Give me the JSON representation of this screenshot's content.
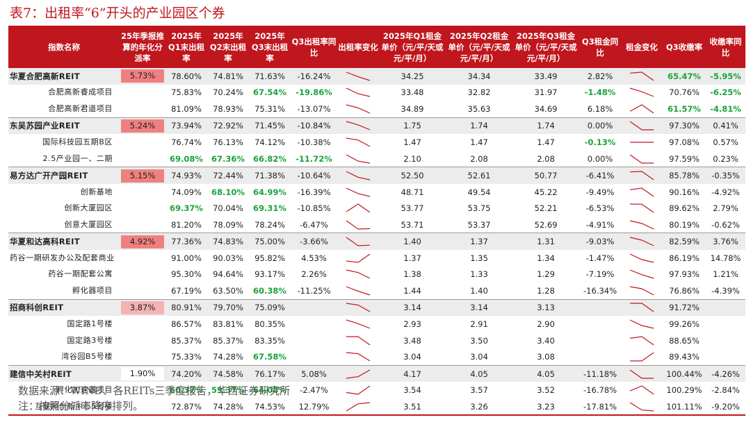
{
  "title": "表7：出租率“6”开头的产业园区个券",
  "colors": {
    "accent": "#c0161d",
    "positive": "#1aa33a",
    "pay_high": "#f08080",
    "pay_low": "#f4b2b2"
  },
  "headers": [
    "指数名称",
    "25年季报推算的年化分派率",
    "2025年Q1末出租率",
    "2025年Q2末出租率",
    "2025年Q3末出租率",
    "Q3出租率同比",
    "出租率变化",
    "2025年Q1租金单价（元/平/天或元/平/月）",
    "2025年Q2租金单价（元/平/天或元/平/月）",
    "2025年Q3租金单价（元/平/天或元/平/月）",
    "Q3租金同比",
    "租金变化",
    "Q3收缴率",
    "收缴率同比"
  ],
  "rows": [
    {
      "name": "华夏合肥高新REIT",
      "group": true,
      "pay": "5.73%",
      "pay_level": "high",
      "occ_q1": "78.60%",
      "occ_q2": "74.81%",
      "occ_q3": "71.63%",
      "occ_yoy": "-16.24%",
      "occ_trend": [
        78.6,
        74.81,
        71.63
      ],
      "rent_q1": "34.25",
      "rent_q2": "34.34",
      "rent_q3": "33.49",
      "rent_yoy": "2.82%",
      "rent_trend": [
        34.25,
        34.34,
        33.49
      ],
      "coll": "65.47%",
      "coll_yoy": "-5.95%",
      "green": [
        "coll",
        "coll_yoy"
      ]
    },
    {
      "name": "合肥高新睿成项目",
      "group": false,
      "pay": "",
      "pay_level": "",
      "occ_q1": "75.83%",
      "occ_q2": "70.24%",
      "occ_q3": "67.54%",
      "occ_yoy": "-19.86%",
      "occ_trend": [
        75.83,
        70.24,
        67.54
      ],
      "rent_q1": "33.48",
      "rent_q2": "32.82",
      "rent_q3": "31.97",
      "rent_yoy": "-1.48%",
      "rent_trend": [
        33.48,
        32.82,
        31.97
      ],
      "coll": "70.76%",
      "coll_yoy": "-6.25%",
      "green": [
        "occ_q3",
        "occ_yoy",
        "rent_yoy",
        "coll_yoy"
      ]
    },
    {
      "name": "合肥高新君道项目",
      "group": false,
      "pay": "",
      "pay_level": "",
      "occ_q1": "81.09%",
      "occ_q2": "78.93%",
      "occ_q3": "75.31%",
      "occ_yoy": "-13.07%",
      "occ_trend": [
        81.09,
        78.93,
        75.31
      ],
      "rent_q1": "34.89",
      "rent_q2": "35.63",
      "rent_q3": "34.69",
      "rent_yoy": "6.18%",
      "rent_trend": [
        34.89,
        35.63,
        34.69
      ],
      "coll": "61.57%",
      "coll_yoy": "-4.81%",
      "green": [
        "coll",
        "coll_yoy"
      ]
    },
    {
      "name": "东吴苏园产业REIT",
      "group": true,
      "pay": "5.24%",
      "pay_level": "high",
      "occ_q1": "73.94%",
      "occ_q2": "72.92%",
      "occ_q3": "71.45%",
      "occ_yoy": "-10.84%",
      "occ_trend": [
        73.94,
        72.92,
        71.45
      ],
      "rent_q1": "1.75",
      "rent_q2": "1.74",
      "rent_q3": "1.74",
      "rent_yoy": "0.00%",
      "rent_trend": [
        1.75,
        1.74,
        1.74
      ],
      "coll": "97.30%",
      "coll_yoy": "0.41%",
      "green": []
    },
    {
      "name": "国际科技园五期B区",
      "group": false,
      "pay": "",
      "pay_level": "",
      "occ_q1": "76.74%",
      "occ_q2": "76.13%",
      "occ_q3": "74.12%",
      "occ_yoy": "-10.38%",
      "occ_trend": [
        76.74,
        76.13,
        74.12
      ],
      "rent_q1": "1.47",
      "rent_q2": "1.47",
      "rent_q3": "1.47",
      "rent_yoy": "-0.13%",
      "rent_trend": [
        1.47,
        1.47,
        1.47
      ],
      "coll": "97.08%",
      "coll_yoy": "0.57%",
      "green": [
        "rent_yoy"
      ]
    },
    {
      "name": "2.5产业园一、二期",
      "group": false,
      "pay": "",
      "pay_level": "",
      "occ_q1": "69.08%",
      "occ_q2": "67.36%",
      "occ_q3": "66.82%",
      "occ_yoy": "-11.72%",
      "occ_trend": [
        69.08,
        67.36,
        66.82
      ],
      "rent_q1": "2.10",
      "rent_q2": "2.08",
      "rent_q3": "2.08",
      "rent_yoy": "0.00%",
      "rent_trend": [
        2.1,
        2.08,
        2.08
      ],
      "coll": "97.59%",
      "coll_yoy": "0.23%",
      "green": [
        "occ_q1",
        "occ_q2",
        "occ_q3",
        "occ_yoy"
      ]
    },
    {
      "name": "易方达广开产园REIT",
      "group": true,
      "pay": "5.15%",
      "pay_level": "high",
      "occ_q1": "74.93%",
      "occ_q2": "72.44%",
      "occ_q3": "71.38%",
      "occ_yoy": "-10.64%",
      "occ_trend": [
        74.93,
        72.44,
        71.38
      ],
      "rent_q1": "52.50",
      "rent_q2": "52.61",
      "rent_q3": "50.77",
      "rent_yoy": "-6.41%",
      "rent_trend": [
        52.5,
        52.61,
        50.77
      ],
      "coll": "85.78%",
      "coll_yoy": "-0.35%",
      "green": []
    },
    {
      "name": "创新基地",
      "group": false,
      "pay": "",
      "pay_level": "",
      "occ_q1": "74.09%",
      "occ_q2": "68.10%",
      "occ_q3": "64.99%",
      "occ_yoy": "-16.39%",
      "occ_trend": [
        74.09,
        68.1,
        64.99
      ],
      "rent_q1": "48.71",
      "rent_q2": "49.54",
      "rent_q3": "45.22",
      "rent_yoy": "-9.49%",
      "rent_trend": [
        48.71,
        49.54,
        45.22
      ],
      "coll": "90.16%",
      "coll_yoy": "-4.92%",
      "green": [
        "occ_q2",
        "occ_q3"
      ]
    },
    {
      "name": "创新大厦园区",
      "group": false,
      "pay": "",
      "pay_level": "",
      "occ_q1": "69.37%",
      "occ_q2": "70.04%",
      "occ_q3": "69.31%",
      "occ_yoy": "-10.85%",
      "occ_trend": [
        69.37,
        70.04,
        69.31
      ],
      "rent_q1": "53.77",
      "rent_q2": "53.75",
      "rent_q3": "52.21",
      "rent_yoy": "-6.53%",
      "rent_trend": [
        53.77,
        53.75,
        52.21
      ],
      "coll": "89.62%",
      "coll_yoy": "2.79%",
      "green": [
        "occ_q1",
        "occ_q3"
      ]
    },
    {
      "name": "创意大厦园区",
      "group": false,
      "pay": "",
      "pay_level": "",
      "occ_q1": "81.20%",
      "occ_q2": "78.09%",
      "occ_q3": "78.24%",
      "occ_yoy": "-6.47%",
      "occ_trend": [
        81.2,
        78.09,
        78.24
      ],
      "rent_q1": "53.71",
      "rent_q2": "53.37",
      "rent_q3": "52.69",
      "rent_yoy": "-4.91%",
      "rent_trend": [
        53.71,
        53.37,
        52.69
      ],
      "coll": "80.19%",
      "coll_yoy": "-0.62%",
      "green": []
    },
    {
      "name": "华夏和达高科REIT",
      "group": true,
      "pay": "4.92%",
      "pay_level": "high",
      "occ_q1": "77.36%",
      "occ_q2": "74.83%",
      "occ_q3": "75.00%",
      "occ_yoy": "-3.66%",
      "occ_trend": [
        77.36,
        74.83,
        75.0
      ],
      "rent_q1": "1.40",
      "rent_q2": "1.37",
      "rent_q3": "1.31",
      "rent_yoy": "-9.03%",
      "rent_trend": [
        1.4,
        1.37,
        1.31
      ],
      "coll": "82.59%",
      "coll_yoy": "3.76%",
      "green": []
    },
    {
      "name": "药谷一期研发办公及配套商业",
      "group": false,
      "pay": "",
      "pay_level": "",
      "occ_q1": "91.00%",
      "occ_q2": "90.03%",
      "occ_q3": "95.82%",
      "occ_yoy": "4.53%",
      "occ_trend": [
        91.0,
        90.03,
        95.82
      ],
      "rent_q1": "1.37",
      "rent_q2": "1.35",
      "rent_q3": "1.34",
      "rent_yoy": "-1.47%",
      "rent_trend": [
        1.37,
        1.35,
        1.34
      ],
      "coll": "86.19%",
      "coll_yoy": "14.78%",
      "green": []
    },
    {
      "name": "药谷一期配套公寓",
      "group": false,
      "pay": "",
      "pay_level": "",
      "occ_q1": "95.30%",
      "occ_q2": "94.64%",
      "occ_q3": "93.17%",
      "occ_yoy": "2.26%",
      "occ_trend": [
        95.3,
        94.64,
        93.17
      ],
      "rent_q1": "1.38",
      "rent_q2": "1.33",
      "rent_q3": "1.29",
      "rent_yoy": "-7.19%",
      "rent_trend": [
        1.38,
        1.33,
        1.29
      ],
      "coll": "97.93%",
      "coll_yoy": "1.21%",
      "green": []
    },
    {
      "name": "孵化器项目",
      "group": false,
      "pay": "",
      "pay_level": "",
      "occ_q1": "67.19%",
      "occ_q2": "63.50%",
      "occ_q3": "60.38%",
      "occ_yoy": "-11.25%",
      "occ_trend": [
        67.19,
        63.5,
        60.38
      ],
      "rent_q1": "1.44",
      "rent_q2": "1.40",
      "rent_q3": "1.28",
      "rent_yoy": "-16.34%",
      "rent_trend": [
        1.44,
        1.4,
        1.28
      ],
      "coll": "76.86%",
      "coll_yoy": "-4.39%",
      "green": [
        "occ_q3"
      ]
    },
    {
      "name": "招商科创REIT",
      "group": true,
      "pay": "3.87%",
      "pay_level": "low",
      "occ_q1": "80.91%",
      "occ_q2": "79.70%",
      "occ_q3": "75.09%",
      "occ_yoy": "",
      "occ_trend": [
        80.91,
        79.7,
        75.09
      ],
      "rent_q1": "3.14",
      "rent_q2": "3.14",
      "rent_q3": "3.13",
      "rent_yoy": "",
      "rent_trend": [
        3.14,
        3.14,
        3.13
      ],
      "coll": "91.72%",
      "coll_yoy": "",
      "green": []
    },
    {
      "name": "国定路1号楼",
      "group": false,
      "pay": "",
      "pay_level": "",
      "occ_q1": "86.57%",
      "occ_q2": "83.81%",
      "occ_q3": "80.35%",
      "occ_yoy": "",
      "occ_trend": [
        86.57,
        83.81,
        80.35
      ],
      "rent_q1": "2.93",
      "rent_q2": "2.91",
      "rent_q3": "2.90",
      "rent_yoy": "",
      "rent_trend": [
        2.93,
        2.91,
        2.9
      ],
      "coll": "99.26%",
      "coll_yoy": "",
      "green": []
    },
    {
      "name": "国定路3号楼",
      "group": false,
      "pay": "",
      "pay_level": "",
      "occ_q1": "85.37%",
      "occ_q2": "85.37%",
      "occ_q3": "83.35%",
      "occ_yoy": "",
      "occ_trend": [
        85.37,
        85.37,
        83.35
      ],
      "rent_q1": "3.48",
      "rent_q2": "3.50",
      "rent_q3": "3.40",
      "rent_yoy": "",
      "rent_trend": [
        3.48,
        3.5,
        3.4
      ],
      "coll": "88.65%",
      "coll_yoy": "",
      "green": []
    },
    {
      "name": "湾谷园B5号楼",
      "group": false,
      "pay": "",
      "pay_level": "",
      "occ_q1": "75.33%",
      "occ_q2": "74.28%",
      "occ_q3": "67.58%",
      "occ_yoy": "",
      "occ_trend": [
        75.33,
        74.28,
        67.58
      ],
      "rent_q1": "3.04",
      "rent_q2": "3.04",
      "rent_q3": "3.08",
      "rent_yoy": "",
      "rent_trend": [
        3.04,
        3.04,
        3.08
      ],
      "coll": "89.43%",
      "coll_yoy": "",
      "green": [
        "occ_q3"
      ]
    },
    {
      "name": "建信中关村REIT",
      "group": true,
      "pay": "1.90%",
      "pay_level": "none",
      "occ_q1": "74.20%",
      "occ_q2": "74.58%",
      "occ_q3": "76.17%",
      "occ_yoy": "5.08%",
      "occ_trend": [
        74.2,
        74.58,
        76.17
      ],
      "rent_q1": "4.17",
      "rent_q2": "4.05",
      "rent_q3": "4.05",
      "rent_yoy": "-11.18%",
      "rent_trend": [
        4.17,
        4.05,
        4.05
      ],
      "coll": "100.44%",
      "coll_yoy": "-4.26%",
      "green": []
    },
    {
      "name": "孵化加速器项目",
      "group": false,
      "pay": "",
      "pay_level": "",
      "occ_q1": "60.37%",
      "occ_q2": "59.37%",
      "occ_q3": "64.08%",
      "occ_yoy": "-2.47%",
      "occ_trend": [
        60.37,
        59.37,
        64.08
      ],
      "rent_q1": "3.54",
      "rent_q2": "3.57",
      "rent_q3": "3.52",
      "rent_yoy": "-16.78%",
      "rent_trend": [
        3.54,
        3.57,
        3.52
      ],
      "coll": "100.29%",
      "coll_yoy": "-2.84%",
      "green": [
        "occ_q1",
        "occ_q2",
        "occ_q3"
      ]
    },
    {
      "name": "互联网创新中心5号楼",
      "group": false,
      "pay": "",
      "pay_level": "",
      "occ_q1": "72.87%",
      "occ_q2": "74.28%",
      "occ_q3": "74.53%",
      "occ_yoy": "12.79%",
      "occ_trend": [
        72.87,
        74.28,
        74.53
      ],
      "rent_q1": "3.51",
      "rent_q2": "3.26",
      "rent_q3": "3.23",
      "rent_yoy": "-17.81%",
      "rent_trend": [
        3.51,
        3.26,
        3.23
      ],
      "coll": "101.11%",
      "coll_yoy": "-9.20%",
      "green": []
    }
  ],
  "source": "数据来源：WIND、各REITs三季度报告，华西证券研究所",
  "note": "注：按照分派率降序排列。"
}
